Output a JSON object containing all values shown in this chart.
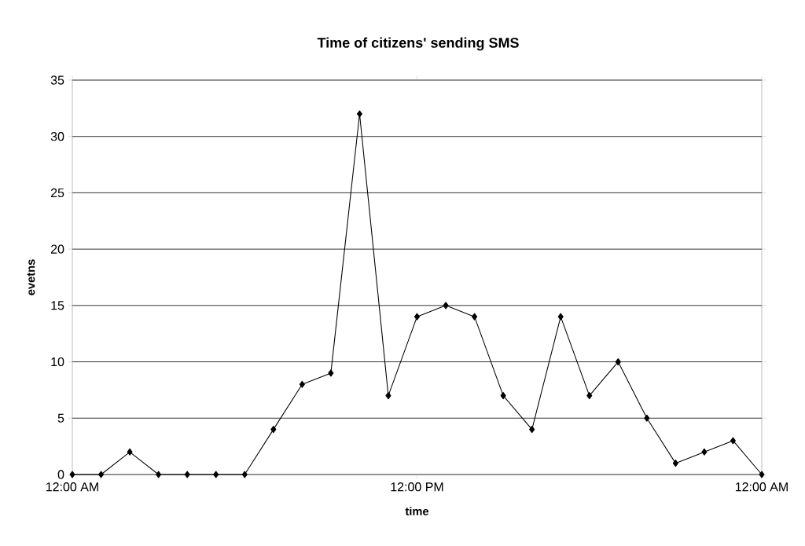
{
  "chart_data": {
    "type": "line",
    "title": "Time of citizens' sending SMS",
    "xlabel": "time",
    "ylabel": "evetns",
    "x": [
      0,
      1,
      2,
      3,
      4,
      5,
      6,
      7,
      8,
      9,
      10,
      11,
      12,
      13,
      14,
      15,
      16,
      17,
      18,
      19,
      20,
      21,
      22,
      23,
      24
    ],
    "series": [
      {
        "color": "#000000",
        "values": [
          0,
          0,
          2,
          0,
          0,
          0,
          0,
          4,
          8,
          9,
          32,
          7,
          14,
          15,
          14,
          7,
          4,
          14,
          7,
          10,
          5,
          1,
          2,
          3,
          0
        ]
      }
    ],
    "xlim": [
      0,
      24
    ],
    "xticks": [
      {
        "value": 0,
        "label": "12:00 AM"
      },
      {
        "value": 12,
        "label": "12:00 PM"
      },
      {
        "value": 24,
        "label": "12:00 AM"
      }
    ],
    "ylim": [
      0,
      35
    ],
    "yticks": [
      0,
      5,
      10,
      15,
      20,
      25,
      30,
      35
    ],
    "grid": "y",
    "marker": "diamond",
    "line_style": "solid"
  }
}
